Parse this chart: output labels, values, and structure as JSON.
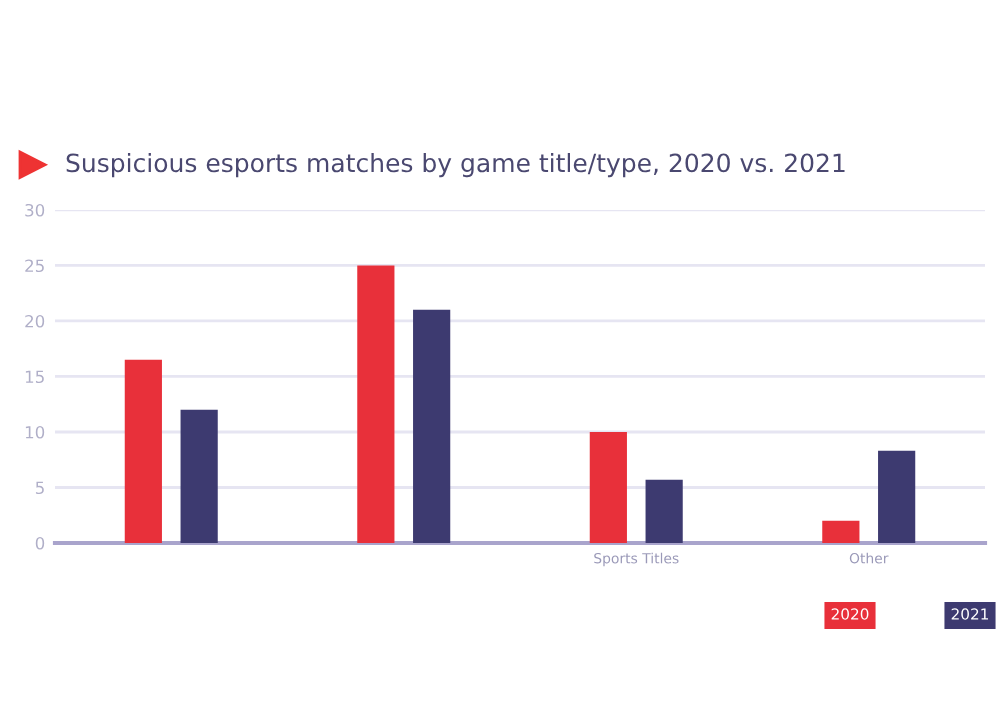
{
  "chart_data": {
    "type": "bar",
    "title": "Suspicious esports matches by game title/type, 2020 vs. 2021",
    "categories": [
      null,
      null,
      "Sports Titles",
      "Other"
    ],
    "series": [
      {
        "name": "2020",
        "color": "#e8303a",
        "values": [
          16.5,
          25,
          10,
          2
        ]
      },
      {
        "name": "2021",
        "color": "#3d3a70",
        "values": [
          12,
          21,
          5.7,
          8.3
        ]
      }
    ],
    "ylim": [
      0,
      30
    ],
    "yticks": [
      0,
      5,
      10,
      15,
      20,
      25,
      30
    ],
    "grid": "y",
    "legend": "bottom right"
  }
}
